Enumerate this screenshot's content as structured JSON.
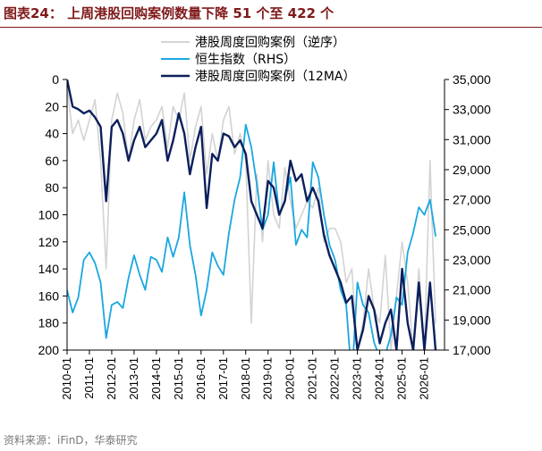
{
  "header": {
    "title": "图表24：   上周港股回购案例数量下降 51 个至 422 个"
  },
  "footer": {
    "source": "资料来源：iFinD，华泰研究"
  },
  "colors": {
    "title": "#7f1a1a",
    "cases": "#d3d3d3",
    "hsi": "#1aa7e0",
    "ma12": "#0b1f5c"
  },
  "chart_data": {
    "type": "line",
    "x_ticks": [
      "2010-01",
      "2011-01",
      "2012-01",
      "2013-01",
      "2014-01",
      "2015-01",
      "2016-01",
      "2017-01",
      "2018-01",
      "2019-01",
      "2020-01",
      "2021-01",
      "2022-01",
      "2023-01",
      "2024-01",
      "2025-01",
      "2026-01"
    ],
    "left_axis": {
      "min": 0,
      "max": 200,
      "inverted": true,
      "ticks": [
        "0",
        "20",
        "40",
        "60",
        "80",
        "100",
        "120",
        "140",
        "160",
        "180",
        "200"
      ]
    },
    "right_axis": {
      "min": 17000,
      "max": 35000,
      "ticks": [
        "17,000",
        "19,000",
        "21,000",
        "23,000",
        "25,000",
        "27,000",
        "29,000",
        "31,000",
        "33,000",
        "35,000"
      ]
    },
    "legend": {
      "position": "top-center",
      "items": [
        {
          "name": "港股周度回购案例（逆序）",
          "key": "cases"
        },
        {
          "name": "恒生指数（RHS）",
          "key": "hsi"
        },
        {
          "name": "港股周度回购案例（12MA）",
          "key": "ma12"
        }
      ]
    },
    "series": [
      {
        "name": "港股周度回购案例（逆序）",
        "axis": "left",
        "x": [
          2010.0,
          2010.25,
          2010.5,
          2010.75,
          2011.0,
          2011.25,
          2011.5,
          2011.75,
          2012.0,
          2012.25,
          2012.5,
          2012.75,
          2013.0,
          2013.25,
          2013.5,
          2013.75,
          2014.0,
          2014.25,
          2014.5,
          2014.75,
          2015.0,
          2015.25,
          2015.5,
          2015.75,
          2016.0,
          2016.25,
          2016.5,
          2016.75,
          2017.0,
          2017.25,
          2017.5,
          2017.75,
          2018.0,
          2018.25,
          2018.5,
          2018.75,
          2019.0,
          2019.25,
          2019.5,
          2019.75,
          2020.0,
          2020.25,
          2020.5,
          2020.75,
          2021.0,
          2021.25,
          2021.5,
          2021.75,
          2022.0,
          2022.25,
          2022.5,
          2022.75,
          2023.0,
          2023.25,
          2023.5,
          2023.75,
          2024.0,
          2024.25,
          2024.5,
          2024.75,
          2025.0,
          2025.25,
          2025.5,
          2025.75,
          2026.0,
          2026.25,
          2026.5
        ],
        "y": [
          5,
          40,
          30,
          45,
          30,
          15,
          60,
          140,
          30,
          10,
          25,
          60,
          30,
          15,
          45,
          35,
          30,
          20,
          50,
          20,
          30,
          10,
          60,
          35,
          20,
          70,
          40,
          60,
          30,
          20,
          55,
          40,
          60,
          180,
          70,
          120,
          60,
          100,
          110,
          65,
          90,
          110,
          100,
          90,
          95,
          80,
          120,
          110,
          110,
          120,
          150,
          140,
          200,
          180,
          140,
          170,
          180,
          130,
          200,
          160,
          120,
          150,
          200,
          140,
          200,
          60,
          180
        ]
      },
      {
        "name": "恒生指数（RHS）",
        "axis": "right",
        "x": [
          2010.0,
          2010.25,
          2010.5,
          2010.75,
          2011.0,
          2011.25,
          2011.5,
          2011.75,
          2012.0,
          2012.25,
          2012.5,
          2012.75,
          2013.0,
          2013.25,
          2013.5,
          2013.75,
          2014.0,
          2014.25,
          2014.5,
          2014.75,
          2015.0,
          2015.25,
          2015.5,
          2015.75,
          2016.0,
          2016.25,
          2016.5,
          2016.75,
          2017.0,
          2017.25,
          2017.5,
          2017.75,
          2018.0,
          2018.25,
          2018.5,
          2018.75,
          2019.0,
          2019.25,
          2019.5,
          2019.75,
          2020.0,
          2020.25,
          2020.5,
          2020.75,
          2021.0,
          2021.25,
          2021.5,
          2021.75,
          2022.0,
          2022.25,
          2022.5,
          2022.75,
          2023.0,
          2023.25,
          2023.5,
          2023.75,
          2024.0,
          2024.25,
          2024.5,
          2024.75,
          2025.0,
          2025.25,
          2025.5,
          2025.75,
          2026.0,
          2026.25,
          2026.5
        ],
        "y": [
          21000,
          19500,
          20500,
          23000,
          23500,
          22800,
          21500,
          17800,
          20000,
          20200,
          19800,
          21800,
          23300,
          22000,
          21000,
          23200,
          23000,
          22200,
          24500,
          23200,
          24500,
          27500,
          24000,
          22000,
          19300,
          21000,
          23500,
          22600,
          22000,
          24800,
          27000,
          28500,
          32000,
          30500,
          28000,
          25000,
          26000,
          29500,
          26000,
          27000,
          28500,
          24000,
          25000,
          24500,
          29500,
          28500,
          26000,
          24000,
          23000,
          21000,
          20000,
          15000,
          21500,
          20000,
          19500,
          17500,
          16500,
          16700,
          18000,
          20500,
          20000,
          23500,
          24800,
          26500,
          26000,
          27000,
          24600
        ]
      },
      {
        "name": "港股周度回购案例（12MA）",
        "axis": "left",
        "x": [
          2010.0,
          2010.25,
          2010.5,
          2010.75,
          2011.0,
          2011.25,
          2011.5,
          2011.75,
          2012.0,
          2012.25,
          2012.5,
          2012.75,
          2013.0,
          2013.25,
          2013.5,
          2013.75,
          2014.0,
          2014.25,
          2014.5,
          2014.75,
          2015.0,
          2015.25,
          2015.5,
          2015.75,
          2016.0,
          2016.25,
          2016.5,
          2016.75,
          2017.0,
          2017.25,
          2017.5,
          2017.75,
          2018.0,
          2018.25,
          2018.5,
          2018.75,
          2019.0,
          2019.25,
          2019.5,
          2019.75,
          2020.0,
          2020.25,
          2020.5,
          2020.75,
          2021.0,
          2021.25,
          2021.5,
          2021.75,
          2022.0,
          2022.25,
          2022.5,
          2022.75,
          2023.0,
          2023.25,
          2023.5,
          2023.75,
          2024.0,
          2024.25,
          2024.5,
          2024.75,
          2025.0,
          2025.25,
          2025.5,
          2025.75,
          2026.0,
          2026.25,
          2026.5
        ],
        "y": [
          0,
          20,
          22,
          25,
          23,
          28,
          35,
          90,
          35,
          30,
          40,
          60,
          45,
          35,
          50,
          45,
          40,
          30,
          60,
          45,
          25,
          40,
          70,
          50,
          35,
          95,
          55,
          60,
          40,
          42,
          50,
          45,
          55,
          90,
          100,
          110,
          75,
          80,
          100,
          90,
          60,
          75,
          70,
          90,
          80,
          90,
          115,
          130,
          140,
          150,
          165,
          160,
          200,
          185,
          160,
          170,
          195,
          180,
          170,
          200,
          140,
          180,
          200,
          150,
          200,
          150,
          200
        ]
      }
    ]
  }
}
